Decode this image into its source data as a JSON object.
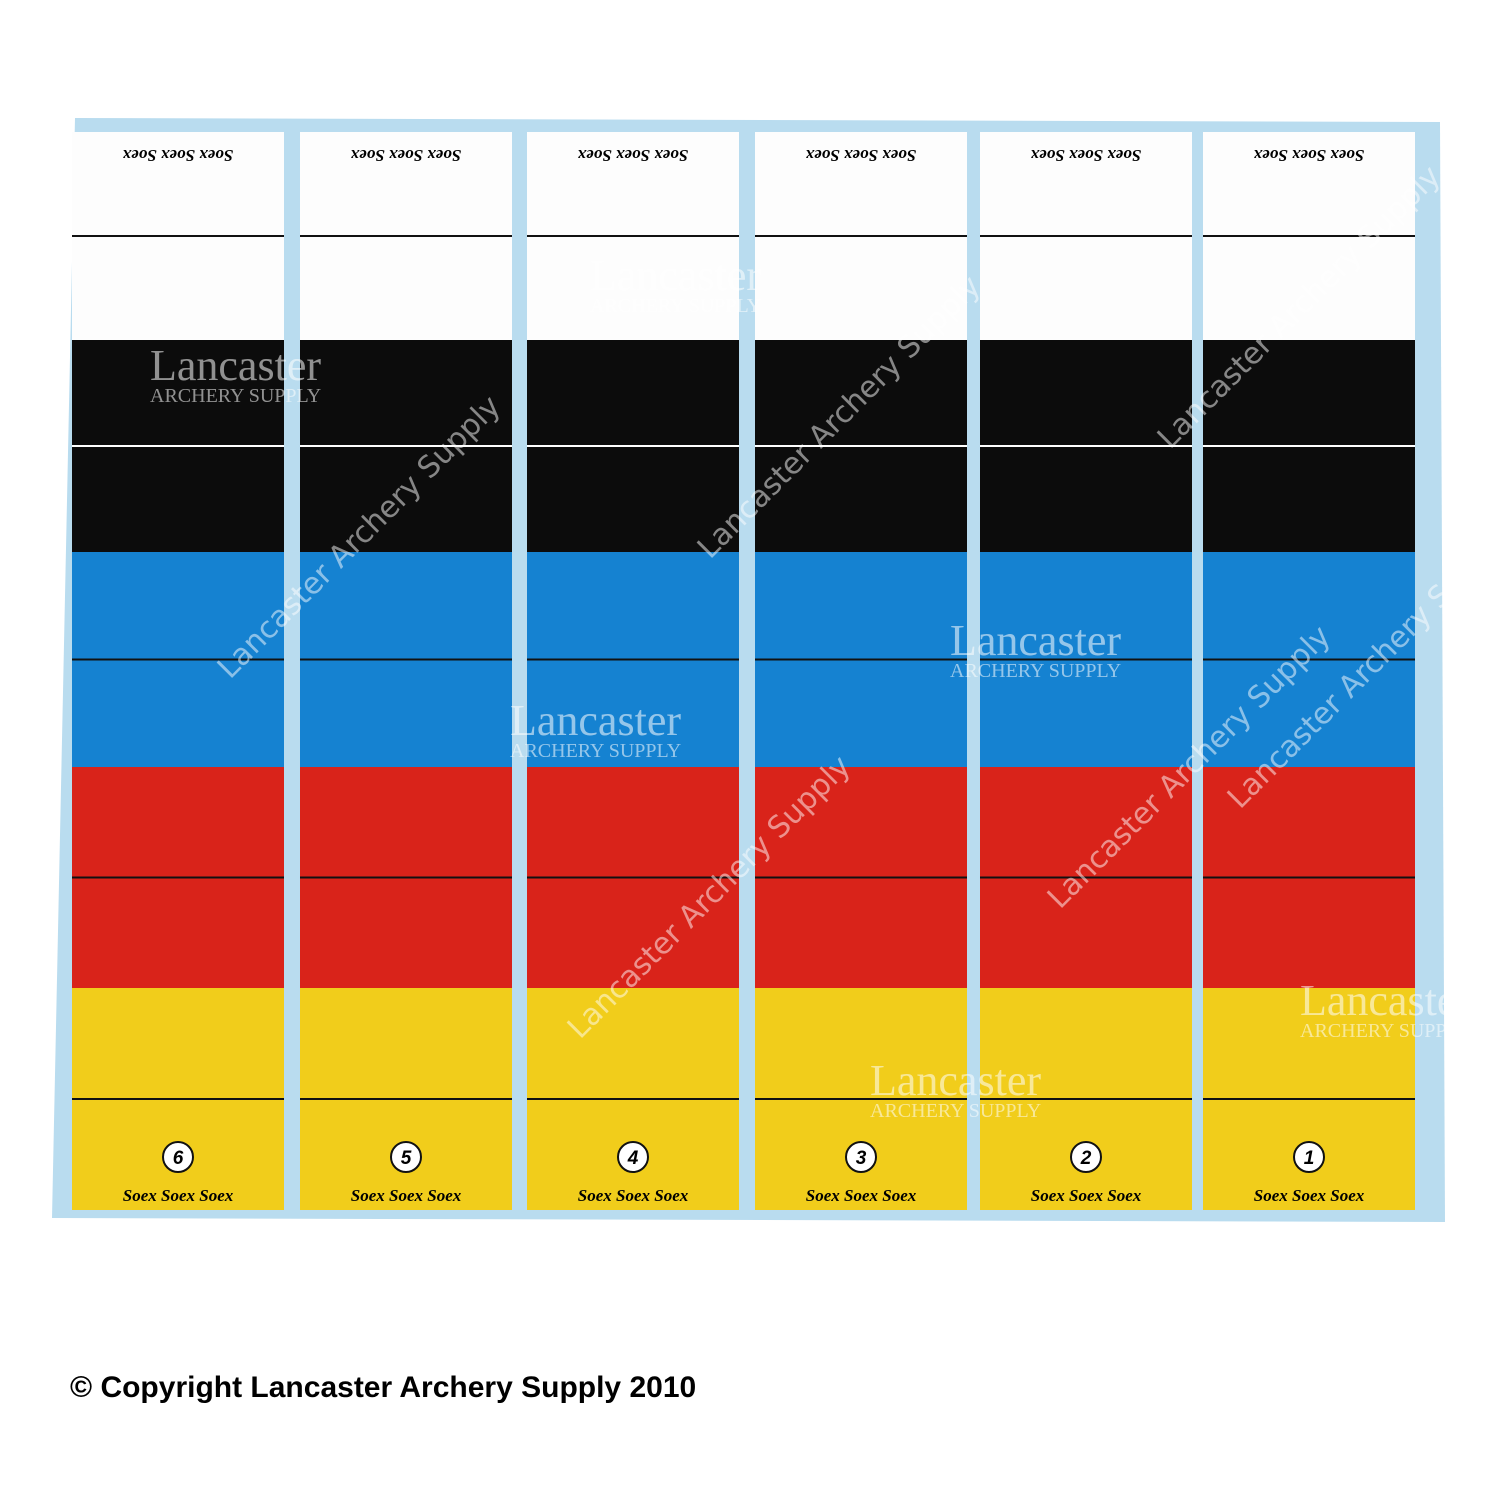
{
  "strips": [
    {
      "number": "6",
      "top_brand": "Soex Soex Soex",
      "bottom_brand": "Soex Soex Soex"
    },
    {
      "number": "5",
      "top_brand": "Soex Soex Soex",
      "bottom_brand": "Soex Soex Soex"
    },
    {
      "number": "4",
      "top_brand": "Soex Soex Soex",
      "bottom_brand": "Soex Soex Soex"
    },
    {
      "number": "3",
      "top_brand": "Soex Soex Soex",
      "bottom_brand": "Soex Soex Soex"
    },
    {
      "number": "2",
      "top_brand": "Soex Soex Soex",
      "bottom_brand": "Soex Soex Soex"
    },
    {
      "number": "1",
      "top_brand": "Soex Soex Soex",
      "bottom_brand": "Soex Soex Soex"
    }
  ],
  "watermarks": [
    {
      "name": "Lancaster",
      "subtitle": "ARCHERY SUPPLY"
    },
    {
      "name": "Lancaster",
      "subtitle": "ARCHERY SUPPLY"
    },
    {
      "name": "Lancaster",
      "subtitle": "ARCHERY SUPPLY"
    },
    {
      "name": "Lancaster",
      "subtitle": "ARCHERY SUPPLY"
    },
    {
      "name": "Lancaster",
      "subtitle": "ARCHERY SUPPLY"
    },
    {
      "name": "Lancaster",
      "subtitle": "ARCHERY SUPPLY"
    }
  ],
  "diagonal_watermarks": [
    "Lancaster Archery Supply",
    "Lancaster Archery Supply",
    "Lancaster Archery Supply",
    "Lancaster Archery Supply",
    "Lancaster Archery Supply",
    "Lancaster Archery Supply"
  ],
  "copyright": "© Copyright Lancaster Archery Supply 2010"
}
